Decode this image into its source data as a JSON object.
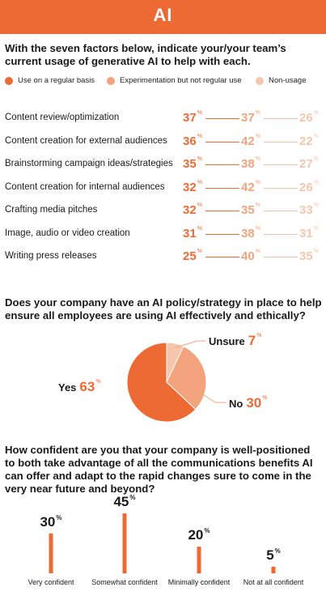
{
  "header": {
    "title": "AI"
  },
  "section1": {
    "question": "With the seven factors below, indicate your/your team’s current usage of generative AI to help with each.",
    "legend": [
      {
        "label": "Use on a regular basis",
        "color": "#ee6a35"
      },
      {
        "label": "Experimentation but not regular use",
        "color": "#f3a37d"
      },
      {
        "label": "Non-usage",
        "color": "#f5c6ac"
      }
    ],
    "percent_symbol": "%"
  },
  "section2": {
    "question": "Does your company have an AI policy/strategy in place to help ensure all employees are using AI effectively and ethically?"
  },
  "section3": {
    "question": "How confident are you that your company is well-positioned to both take advantage of all the communications benefits AI can offer and adapt to the rapid changes sure to come in the very near future and beyond?"
  },
  "chart_data": [
    {
      "type": "table",
      "columns": [
        "Use on a regular basis",
        "Experimentation but not regular use",
        "Non-usage"
      ],
      "rows": [
        {
          "label": "Content review/optimization",
          "values": [
            "37",
            "37",
            "26"
          ]
        },
        {
          "label": "Content creation for external audiences",
          "values": [
            "36",
            "42",
            "22"
          ]
        },
        {
          "label": "Brainstorming campaign ideas/strategies",
          "values": [
            "35",
            "38",
            "27"
          ]
        },
        {
          "label": "Content creation for internal audiences",
          "values": [
            "32",
            "42",
            "26"
          ]
        },
        {
          "label": "Crafting media pitches",
          "values": [
            "32",
            "35",
            "33"
          ]
        },
        {
          "label": "Image, audio or video creation",
          "values": [
            "31",
            "38",
            "31"
          ]
        },
        {
          "label": "Writing press releases",
          "values": [
            "25",
            "40",
            "35"
          ]
        }
      ]
    },
    {
      "type": "pie",
      "slices": [
        {
          "label": "Yes",
          "value": 63,
          "display": "63",
          "color": "#ee6a35"
        },
        {
          "label": "No",
          "value": 30,
          "display": "30",
          "color": "#f3a37d"
        },
        {
          "label": "Unsure",
          "value": 7,
          "display": "7",
          "color": "#f5c6ac"
        }
      ]
    },
    {
      "type": "bar",
      "categories": [
        "Very confident",
        "Somewhat confident",
        "Minimally confident",
        "Not at all confident"
      ],
      "values": [
        30,
        45,
        20,
        5
      ],
      "display": [
        "30",
        "45",
        "20",
        "5"
      ],
      "color": "#ee6a35"
    }
  ]
}
